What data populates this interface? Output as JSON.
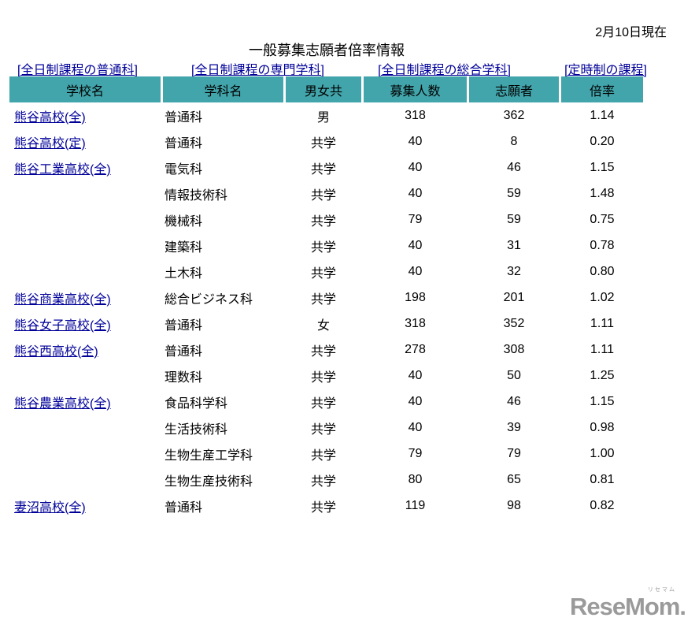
{
  "page": {
    "date_note": "2月10日現在",
    "title": "一般募集志願者倍率情報"
  },
  "nav_links": [
    {
      "label": "[全日制課程の普通科]"
    },
    {
      "label": "[全日制課程の専門学科]"
    },
    {
      "label": "[全日制課程の総合学科]"
    },
    {
      "label": "[定時制の課程]"
    }
  ],
  "table": {
    "headers": {
      "school": "学校名",
      "department": "学科名",
      "gender": "男女共",
      "capacity": "募集人数",
      "applicants": "志願者",
      "ratio": "倍率"
    },
    "rows": [
      {
        "school": "熊谷高校(全)",
        "department": "普通科",
        "gender": "男",
        "capacity": "318",
        "applicants": "362",
        "ratio": "1.14"
      },
      {
        "school": "熊谷高校(定)",
        "department": "普通科",
        "gender": "共学",
        "capacity": "40",
        "applicants": "8",
        "ratio": "0.20"
      },
      {
        "school": "熊谷工業高校(全)",
        "department": "電気科",
        "gender": "共学",
        "capacity": "40",
        "applicants": "46",
        "ratio": "1.15"
      },
      {
        "school": "",
        "department": "情報技術科",
        "gender": "共学",
        "capacity": "40",
        "applicants": "59",
        "ratio": "1.48"
      },
      {
        "school": "",
        "department": "機械科",
        "gender": "共学",
        "capacity": "79",
        "applicants": "59",
        "ratio": "0.75"
      },
      {
        "school": "",
        "department": "建築科",
        "gender": "共学",
        "capacity": "40",
        "applicants": "31",
        "ratio": "0.78"
      },
      {
        "school": "",
        "department": "土木科",
        "gender": "共学",
        "capacity": "40",
        "applicants": "32",
        "ratio": "0.80"
      },
      {
        "school": "熊谷商業高校(全)",
        "department": "総合ビジネス科",
        "gender": "共学",
        "capacity": "198",
        "applicants": "201",
        "ratio": "1.02"
      },
      {
        "school": "熊谷女子高校(全)",
        "department": "普通科",
        "gender": "女",
        "capacity": "318",
        "applicants": "352",
        "ratio": "1.11"
      },
      {
        "school": "熊谷西高校(全)",
        "department": "普通科",
        "gender": "共学",
        "capacity": "278",
        "applicants": "308",
        "ratio": "1.11"
      },
      {
        "school": "",
        "department": "理数科",
        "gender": "共学",
        "capacity": "40",
        "applicants": "50",
        "ratio": "1.25"
      },
      {
        "school": "熊谷農業高校(全)",
        "department": "食品科学科",
        "gender": "共学",
        "capacity": "40",
        "applicants": "46",
        "ratio": "1.15"
      },
      {
        "school": "",
        "department": "生活技術科",
        "gender": "共学",
        "capacity": "40",
        "applicants": "39",
        "ratio": "0.98"
      },
      {
        "school": "",
        "department": "生物生産工学科",
        "gender": "共学",
        "capacity": "79",
        "applicants": "79",
        "ratio": "1.00"
      },
      {
        "school": "",
        "department": "生物生産技術科",
        "gender": "共学",
        "capacity": "80",
        "applicants": "65",
        "ratio": "0.81"
      },
      {
        "school": "妻沼高校(全)",
        "department": "普通科",
        "gender": "共学",
        "capacity": "119",
        "applicants": "98",
        "ratio": "0.82"
      }
    ]
  },
  "footer": {
    "logo_text": "ReseMom.",
    "logo_ruby": "リセマム"
  },
  "colors": {
    "header_bg": "#42a5ab",
    "link": "#000099",
    "logo_gray": "#9a9a9a"
  }
}
